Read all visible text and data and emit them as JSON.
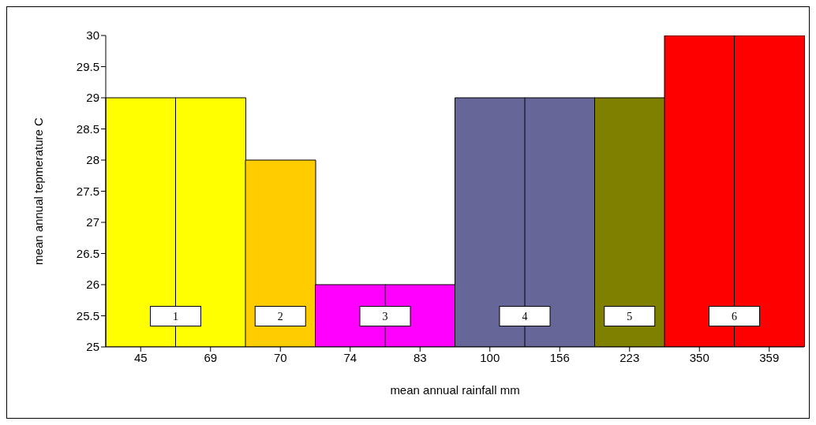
{
  "chart_data": {
    "type": "bar",
    "xlabel": "mean annual rainfall mm",
    "ylabel": "mean annual tepmerature C",
    "categories": [
      "45",
      "69",
      "70",
      "74",
      "83",
      "100",
      "156",
      "223",
      "350",
      "359"
    ],
    "values": [
      29,
      29,
      28,
      26,
      26,
      29,
      29,
      29,
      30,
      30
    ],
    "colors": [
      "#ffff00",
      "#ffff00",
      "#ffcc00",
      "#ff00ff",
      "#ff00ff",
      "#666699",
      "#666699",
      "#808000",
      "#ff0000",
      "#ff0000"
    ],
    "ylim": [
      25,
      30
    ],
    "yticks": [
      25,
      25.5,
      26,
      26.5,
      27,
      27.5,
      28,
      28.5,
      29,
      29.5,
      30
    ],
    "grid": false,
    "legend": false,
    "annotations": [
      "1",
      "2",
      "3",
      "4",
      "5",
      "6"
    ]
  }
}
